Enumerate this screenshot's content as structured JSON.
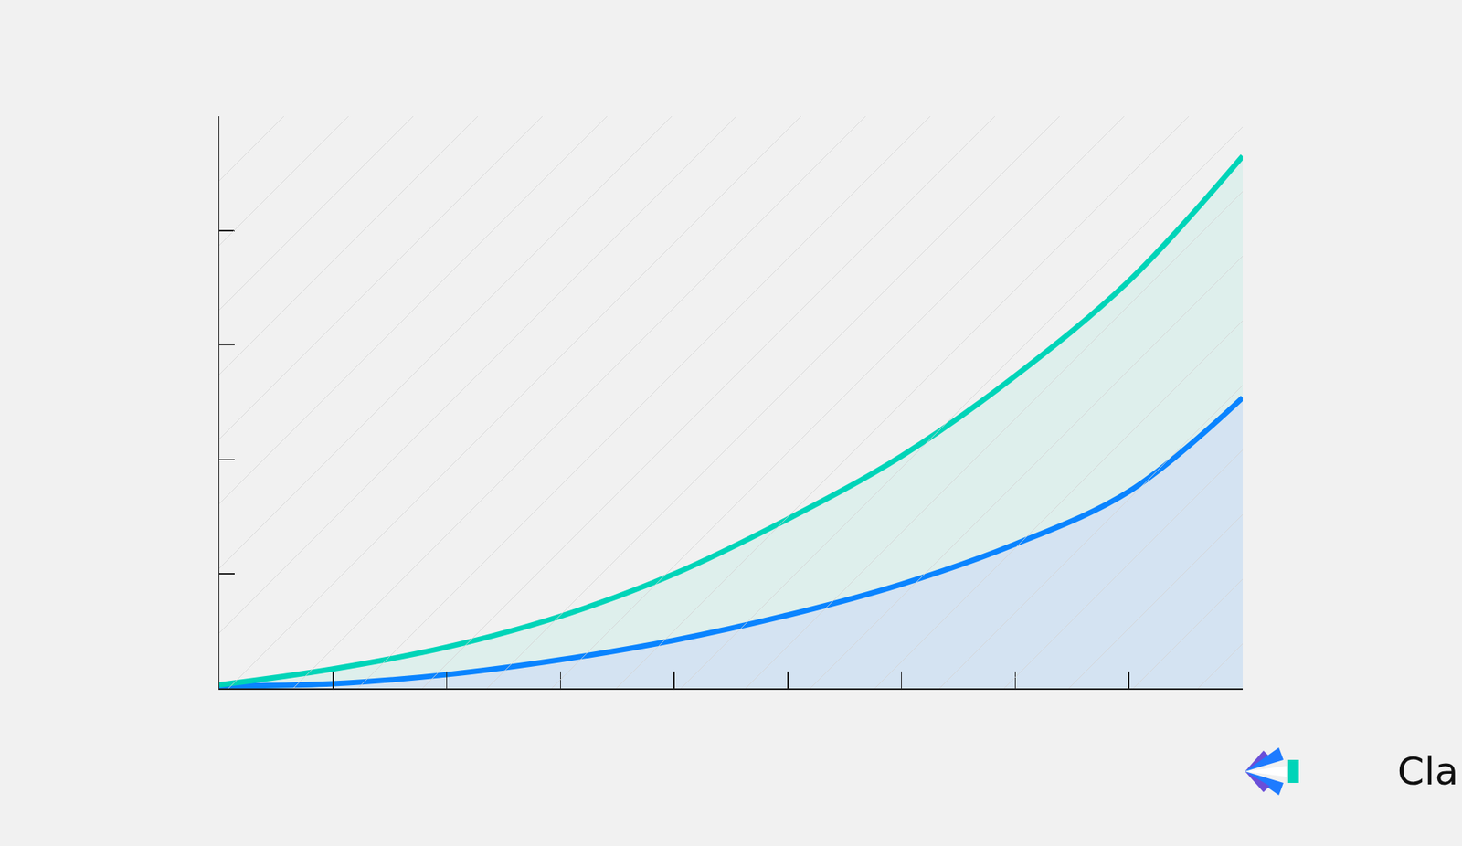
{
  "chart_data": {
    "type": "area",
    "annotations": [
      "Clari"
    ],
    "x": [
      0,
      1,
      2,
      3,
      4,
      5,
      6,
      7,
      8,
      9
    ],
    "series": [
      {
        "color": "#0a84ff",
        "values": [
          0.02,
          0.04,
          0.12,
          0.25,
          0.42,
          0.64,
          0.91,
          1.26,
          1.72,
          2.54
        ]
      },
      {
        "color": "#00d4b8",
        "values": [
          0.03,
          0.17,
          0.36,
          0.63,
          1.0,
          1.48,
          2.03,
          2.73,
          3.56,
          4.65
        ]
      }
    ],
    "xlim": [
      0,
      9
    ],
    "xticks": [
      0,
      1,
      2,
      3,
      4,
      5,
      6,
      7,
      8,
      9
    ],
    "ylim": [
      0,
      5
    ],
    "yticks": [
      0,
      1,
      2,
      3,
      4,
      5
    ],
    "grid": false,
    "tick_labels": false,
    "stacked": false
  }
}
